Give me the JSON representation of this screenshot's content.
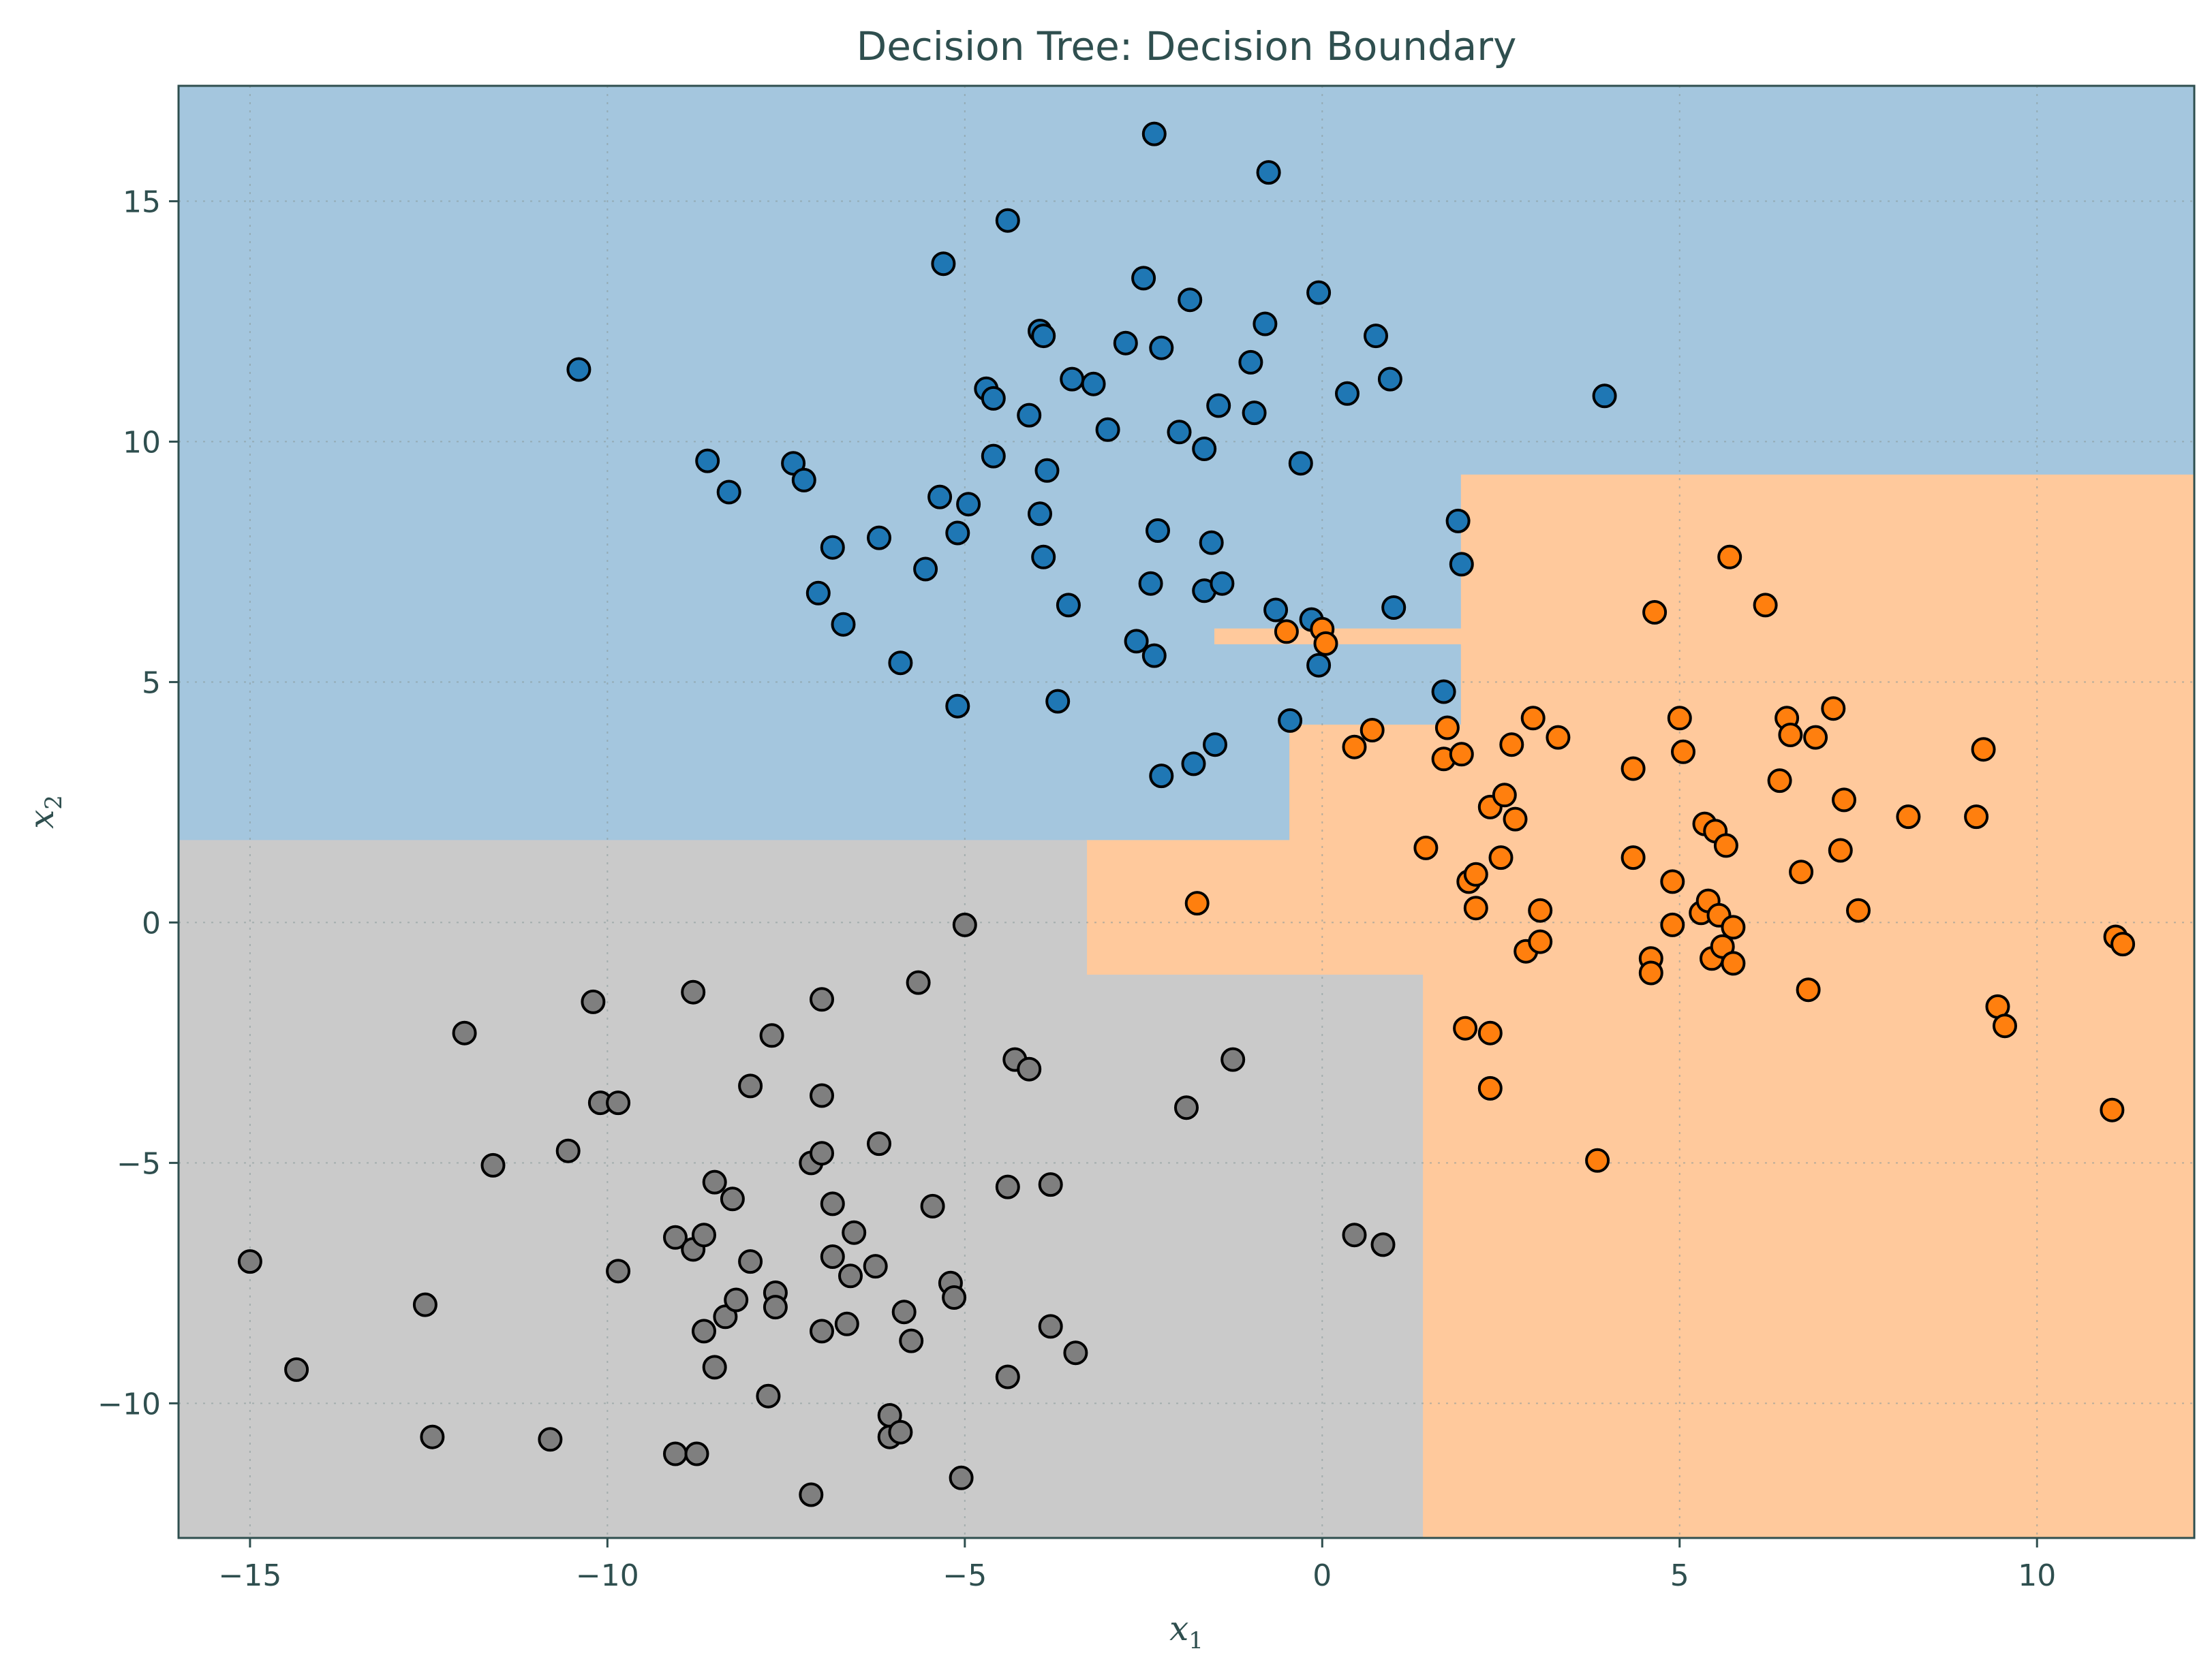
{
  "chart_data": {
    "type": "scatter",
    "title": "Decision Tree: Decision Boundary",
    "xlabel": "x",
    "xlabel_sub": "1",
    "ylabel": "x",
    "ylabel_sub": "2",
    "xlim": [
      -16.0,
      12.2
    ],
    "ylim": [
      -12.8,
      17.4
    ],
    "xticks": [
      -15,
      -10,
      -5,
      0,
      5,
      10
    ],
    "yticks": [
      -10,
      -5,
      0,
      5,
      10,
      15
    ],
    "xtick_labels": [
      "−15",
      "−10",
      "−5",
      "0",
      "5",
      "10"
    ],
    "ytick_labels": [
      "−10",
      "−5",
      "0",
      "5",
      "10",
      "15"
    ],
    "grid": true,
    "regions": [
      {
        "class": "blue",
        "color": "#a4c6de",
        "polygon": [
          [
            -16.0,
            17.4
          ],
          [
            12.2,
            17.4
          ],
          [
            12.2,
            9.3
          ],
          [
            1.95,
            9.3
          ],
          [
            1.95,
            6.1
          ],
          [
            -1.5,
            6.1
          ],
          [
            -1.5,
            5.8
          ],
          [
            1.95,
            5.8
          ],
          [
            1.95,
            4.1
          ],
          [
            -0.45,
            4.1
          ],
          [
            -0.45,
            1.7
          ],
          [
            -16.0,
            1.7
          ]
        ]
      },
      {
        "class": "orange",
        "color": "#ffc99c",
        "polygon": [
          [
            12.2,
            9.3
          ],
          [
            12.2,
            -12.8
          ],
          [
            1.4,
            -12.8
          ],
          [
            1.4,
            -1.1
          ],
          [
            -3.3,
            -1.1
          ],
          [
            -3.3,
            1.7
          ],
          [
            -0.45,
            1.7
          ],
          [
            -0.45,
            4.1
          ],
          [
            1.95,
            4.1
          ],
          [
            1.95,
            5.8
          ],
          [
            -1.5,
            5.8
          ],
          [
            -1.5,
            6.1
          ],
          [
            1.95,
            6.1
          ],
          [
            1.95,
            9.3
          ]
        ]
      },
      {
        "class": "gray",
        "color": "#cacaca",
        "polygon": [
          [
            -16.0,
            1.7
          ],
          [
            -3.3,
            1.7
          ],
          [
            -3.3,
            -1.1
          ],
          [
            1.4,
            -1.1
          ],
          [
            1.4,
            -12.8
          ],
          [
            -16.0,
            -12.8
          ]
        ]
      }
    ],
    "series": [
      {
        "class": "blue",
        "color": "#1f77b4",
        "points": [
          [
            -10.4,
            11.5
          ],
          [
            -8.6,
            9.6
          ],
          [
            -8.3,
            8.95
          ],
          [
            -7.4,
            9.55
          ],
          [
            -7.25,
            9.2
          ],
          [
            -6.85,
            7.8
          ],
          [
            -7.05,
            6.85
          ],
          [
            -6.7,
            6.2
          ],
          [
            -6.2,
            8.0
          ],
          [
            -5.9,
            5.4
          ],
          [
            -5.35,
            8.85
          ],
          [
            -5.1,
            8.1
          ],
          [
            -5.55,
            7.35
          ],
          [
            -5.3,
            13.7
          ],
          [
            -5.1,
            4.5
          ],
          [
            -4.95,
            8.7
          ],
          [
            -4.7,
            11.1
          ],
          [
            -4.6,
            10.9
          ],
          [
            -4.6,
            9.7
          ],
          [
            -4.4,
            14.6
          ],
          [
            -4.1,
            10.55
          ],
          [
            -3.95,
            12.3
          ],
          [
            -3.95,
            8.5
          ],
          [
            -3.9,
            7.6
          ],
          [
            -3.9,
            12.2
          ],
          [
            -3.85,
            9.4
          ],
          [
            -3.7,
            4.6
          ],
          [
            -3.55,
            6.6
          ],
          [
            -3.5,
            11.3
          ],
          [
            -3.2,
            11.2
          ],
          [
            -3.0,
            10.25
          ],
          [
            -2.75,
            12.05
          ],
          [
            -2.6,
            5.85
          ],
          [
            -2.5,
            13.4
          ],
          [
            -2.4,
            7.05
          ],
          [
            -2.35,
            16.4
          ],
          [
            -2.35,
            5.55
          ],
          [
            -2.3,
            8.15
          ],
          [
            -2.25,
            11.95
          ],
          [
            -2.25,
            3.05
          ],
          [
            -2.0,
            10.2
          ],
          [
            -1.85,
            12.95
          ],
          [
            -1.8,
            3.3
          ],
          [
            -1.65,
            9.85
          ],
          [
            -1.65,
            6.9
          ],
          [
            -1.55,
            7.9
          ],
          [
            -1.5,
            3.7
          ],
          [
            -1.45,
            10.75
          ],
          [
            -1.4,
            7.05
          ],
          [
            -1.0,
            11.65
          ],
          [
            -0.95,
            10.6
          ],
          [
            -0.8,
            12.45
          ],
          [
            -0.75,
            15.6
          ],
          [
            -0.65,
            6.5
          ],
          [
            -0.45,
            4.2
          ],
          [
            -0.3,
            9.55
          ],
          [
            -0.15,
            6.3
          ],
          [
            -0.05,
            5.35
          ],
          [
            -0.05,
            13.1
          ],
          [
            0.35,
            11.0
          ],
          [
            0.75,
            12.2
          ],
          [
            0.95,
            11.3
          ],
          [
            1.0,
            6.55
          ],
          [
            1.7,
            4.8
          ],
          [
            1.9,
            8.35
          ],
          [
            1.95,
            7.45
          ],
          [
            3.95,
            10.95
          ]
        ]
      },
      {
        "class": "orange",
        "color": "#ff7f0e",
        "points": [
          [
            -1.75,
            0.4
          ],
          [
            -0.5,
            6.05
          ],
          [
            0.0,
            6.1
          ],
          [
            0.05,
            5.8
          ],
          [
            0.45,
            3.65
          ],
          [
            0.7,
            4.0
          ],
          [
            1.45,
            1.55
          ],
          [
            1.7,
            3.4
          ],
          [
            1.75,
            4.05
          ],
          [
            1.95,
            3.5
          ],
          [
            2.0,
            -2.2
          ],
          [
            2.05,
            0.85
          ],
          [
            2.15,
            1.0
          ],
          [
            2.15,
            0.3
          ],
          [
            2.35,
            2.4
          ],
          [
            2.35,
            -2.3
          ],
          [
            2.35,
            -3.45
          ],
          [
            2.5,
            1.35
          ],
          [
            2.55,
            2.65
          ],
          [
            2.65,
            3.7
          ],
          [
            2.7,
            2.15
          ],
          [
            2.85,
            -0.6
          ],
          [
            2.95,
            4.25
          ],
          [
            3.05,
            0.25
          ],
          [
            3.05,
            -0.4
          ],
          [
            3.3,
            3.85
          ],
          [
            3.85,
            -4.95
          ],
          [
            4.35,
            1.35
          ],
          [
            4.35,
            3.2
          ],
          [
            4.6,
            -0.75
          ],
          [
            4.6,
            -1.05
          ],
          [
            4.65,
            6.45
          ],
          [
            4.9,
            0.85
          ],
          [
            4.9,
            -0.05
          ],
          [
            5.0,
            4.25
          ],
          [
            5.05,
            3.55
          ],
          [
            5.3,
            0.2
          ],
          [
            5.35,
            2.05
          ],
          [
            5.4,
            0.45
          ],
          [
            5.45,
            -0.75
          ],
          [
            5.5,
            1.9
          ],
          [
            5.55,
            0.15
          ],
          [
            5.6,
            -0.5
          ],
          [
            5.65,
            1.6
          ],
          [
            5.7,
            7.6
          ],
          [
            5.75,
            -0.1
          ],
          [
            5.75,
            -0.85
          ],
          [
            6.2,
            6.6
          ],
          [
            6.4,
            2.95
          ],
          [
            6.5,
            4.25
          ],
          [
            6.55,
            3.9
          ],
          [
            6.7,
            1.05
          ],
          [
            6.8,
            -1.4
          ],
          [
            6.9,
            3.85
          ],
          [
            7.15,
            4.45
          ],
          [
            7.25,
            1.5
          ],
          [
            7.3,
            2.55
          ],
          [
            7.5,
            0.25
          ],
          [
            8.2,
            2.2
          ],
          [
            9.15,
            2.2
          ],
          [
            9.25,
            3.6
          ],
          [
            9.45,
            -1.75
          ],
          [
            9.55,
            -2.15
          ],
          [
            11.05,
            -3.9
          ],
          [
            11.1,
            -0.3
          ],
          [
            11.2,
            -0.45
          ]
        ]
      },
      {
        "class": "gray",
        "color": "#7f7f7f",
        "points": [
          [
            -15.0,
            -7.05
          ],
          [
            -14.35,
            -9.3
          ],
          [
            -12.55,
            -7.95
          ],
          [
            -12.45,
            -10.7
          ],
          [
            -12.0,
            -2.3
          ],
          [
            -11.6,
            -5.05
          ],
          [
            -10.8,
            -10.75
          ],
          [
            -10.55,
            -4.75
          ],
          [
            -10.2,
            -1.65
          ],
          [
            -10.1,
            -3.75
          ],
          [
            -9.85,
            -3.75
          ],
          [
            -9.85,
            -7.25
          ],
          [
            -9.05,
            -6.55
          ],
          [
            -9.05,
            -11.05
          ],
          [
            -8.8,
            -1.45
          ],
          [
            -8.8,
            -6.8
          ],
          [
            -8.75,
            -11.05
          ],
          [
            -8.65,
            -6.5
          ],
          [
            -8.65,
            -8.5
          ],
          [
            -8.5,
            -5.4
          ],
          [
            -8.5,
            -9.25
          ],
          [
            -8.35,
            -8.2
          ],
          [
            -8.25,
            -5.75
          ],
          [
            -8.2,
            -7.85
          ],
          [
            -8.0,
            -3.4
          ],
          [
            -8.0,
            -7.05
          ],
          [
            -7.75,
            -9.85
          ],
          [
            -7.7,
            -2.35
          ],
          [
            -7.65,
            -7.7
          ],
          [
            -7.65,
            -8.0
          ],
          [
            -7.15,
            -5.0
          ],
          [
            -7.15,
            -11.9
          ],
          [
            -7.0,
            -1.6
          ],
          [
            -7.0,
            -3.6
          ],
          [
            -7.0,
            -4.8
          ],
          [
            -7.0,
            -8.5
          ],
          [
            -6.85,
            -5.85
          ],
          [
            -6.85,
            -6.95
          ],
          [
            -6.65,
            -8.35
          ],
          [
            -6.6,
            -7.35
          ],
          [
            -6.55,
            -6.45
          ],
          [
            -6.25,
            -7.15
          ],
          [
            -6.2,
            -4.6
          ],
          [
            -6.05,
            -10.25
          ],
          [
            -6.05,
            -10.7
          ],
          [
            -5.9,
            -10.6
          ],
          [
            -5.85,
            -8.1
          ],
          [
            -5.75,
            -8.7
          ],
          [
            -5.65,
            -1.25
          ],
          [
            -5.45,
            -5.9
          ],
          [
            -5.2,
            -7.5
          ],
          [
            -5.15,
            -7.8
          ],
          [
            -5.05,
            -11.55
          ],
          [
            -5.0,
            -0.05
          ],
          [
            -4.4,
            -5.5
          ],
          [
            -4.4,
            -9.45
          ],
          [
            -4.3,
            -2.85
          ],
          [
            -4.1,
            -3.05
          ],
          [
            -3.8,
            -5.45
          ],
          [
            -3.8,
            -8.4
          ],
          [
            -3.45,
            -8.95
          ],
          [
            -1.9,
            -3.85
          ],
          [
            -1.25,
            -2.85
          ],
          [
            0.45,
            -6.5
          ],
          [
            0.85,
            -6.7
          ]
        ]
      }
    ]
  }
}
